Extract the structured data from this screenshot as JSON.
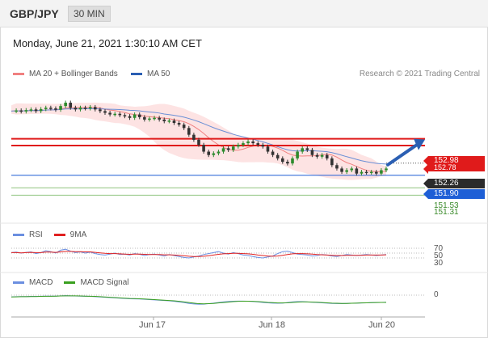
{
  "header": {
    "symbol": "GBP/JPY",
    "interval": "30 MIN"
  },
  "datetime": "Monday, June 21, 2021 1:30:10 AM CET",
  "legend": {
    "bollinger": "MA 20 + Bollinger Bands",
    "ma50": "MA 50"
  },
  "credit": "Research © 2021 Trading Central",
  "colors": {
    "bull": "#2d8a2d",
    "bear": "#333333",
    "ma20": "#f08080",
    "ma50": "#6a8fd6",
    "band": "#fde0e0",
    "resistance": "#e01b1b",
    "support": "#1e5fd6",
    "support2": "#3a8a2a",
    "arrow": "#2b5fb3",
    "rsi": "#6b8fe0",
    "rsi_ma": "#e02020",
    "macd": "#6b8fe0",
    "macd_signal": "#3aa020"
  },
  "levels": {
    "res1": "152.98",
    "res2": "152.78",
    "last": "152.26",
    "sup1": "151.90",
    "sup2": "151.53",
    "sup3": "151.31"
  },
  "rsi": {
    "label": "RSI",
    "ma_label": "9MA",
    "levels": [
      "70",
      "50",
      "30"
    ]
  },
  "macd": {
    "label": "MACD",
    "signal_label": "MACD Signal",
    "zero": "0"
  },
  "xaxis": [
    "Jun 17",
    "Jun 18",
    "Jun 20"
  ],
  "chart_data": {
    "type": "candlestick",
    "ylim": [
      151.2,
      154.6
    ],
    "price_path": [
      153.8,
      153.82,
      153.79,
      153.83,
      153.85,
      153.8,
      153.86,
      153.9,
      153.88,
      153.84,
      153.95,
      154.05,
      153.9,
      153.85,
      153.9,
      153.88,
      153.92,
      153.85,
      153.8,
      153.75,
      153.7,
      153.72,
      153.68,
      153.65,
      153.6,
      153.7,
      153.62,
      153.55,
      153.58,
      153.6,
      153.55,
      153.5,
      153.52,
      153.45,
      153.4,
      153.3,
      153.1,
      152.95,
      152.8,
      152.6,
      152.5,
      152.55,
      152.6,
      152.7,
      152.65,
      152.75,
      152.8,
      152.85,
      152.9,
      152.85,
      152.8,
      152.75,
      152.6,
      152.5,
      152.4,
      152.3,
      152.25,
      152.4,
      152.6,
      152.7,
      152.65,
      152.5,
      152.45,
      152.5,
      152.4,
      152.2,
      152.1,
      152.0,
      152.05,
      152.1,
      151.95,
      152.0,
      151.98,
      152.0,
      151.95,
      152.05,
      152.1
    ],
    "resistance_levels": [
      152.98,
      152.78
    ],
    "support_levels": [
      151.9,
      151.53,
      151.31
    ],
    "last_price": 152.26,
    "target": 152.98,
    "rsi": [
      52,
      54,
      50,
      53,
      55,
      48,
      52,
      60,
      56,
      50,
      62,
      66,
      58,
      52,
      55,
      50,
      54,
      48,
      44,
      42,
      46,
      50,
      44,
      46,
      42,
      48,
      45,
      40,
      44,
      46,
      42,
      38,
      44,
      40,
      36,
      32,
      30,
      34,
      38,
      44,
      48,
      52,
      56,
      50,
      46,
      52,
      48,
      42,
      40,
      36,
      32,
      30,
      34,
      38,
      48,
      56,
      58,
      52,
      46,
      44,
      42,
      38,
      40,
      44,
      42,
      38,
      36,
      40,
      44,
      42,
      40,
      42,
      44,
      42,
      40,
      42,
      44
    ],
    "rsi_ma": [
      52,
      52,
      51,
      52,
      53,
      52,
      52,
      54,
      54,
      53,
      55,
      57,
      57,
      56,
      56,
      55,
      55,
      53,
      51,
      49,
      48,
      48,
      47,
      46,
      45,
      46,
      46,
      45,
      44,
      44,
      44,
      43,
      43,
      42,
      41,
      39,
      37,
      36,
      36,
      37,
      39,
      42,
      45,
      47,
      48,
      49,
      49,
      48,
      47,
      45,
      42,
      40,
      38,
      37,
      38,
      41,
      44,
      47,
      48,
      48,
      47,
      46,
      44,
      43,
      42,
      41,
      40,
      40,
      41,
      41,
      41,
      41,
      42,
      42,
      42,
      42,
      43
    ],
    "macd": [
      0.05,
      0.06,
      0.07,
      0.07,
      0.08,
      0.08,
      0.09,
      0.1,
      0.1,
      0.1,
      0.12,
      0.13,
      0.12,
      0.11,
      0.1,
      0.09,
      0.08,
      0.06,
      0.04,
      0.02,
      0.0,
      -0.02,
      -0.04,
      -0.06,
      -0.08,
      -0.09,
      -0.1,
      -0.12,
      -0.14,
      -0.16,
      -0.18,
      -0.2,
      -0.22,
      -0.26,
      -0.3,
      -0.34,
      -0.4,
      -0.44,
      -0.46,
      -0.45,
      -0.42,
      -0.38,
      -0.34,
      -0.3,
      -0.27,
      -0.25,
      -0.24,
      -0.24,
      -0.25,
      -0.27,
      -0.3,
      -0.33,
      -0.36,
      -0.38,
      -0.39,
      -0.38,
      -0.34,
      -0.3,
      -0.28,
      -0.28,
      -0.3,
      -0.32,
      -0.34,
      -0.36,
      -0.38,
      -0.4,
      -0.41,
      -0.41,
      -0.4,
      -0.39,
      -0.38,
      -0.37,
      -0.36,
      -0.35,
      -0.34,
      -0.33,
      -0.32
    ],
    "macd_signal": [
      0.04,
      0.05,
      0.06,
      0.06,
      0.07,
      0.07,
      0.08,
      0.09,
      0.09,
      0.1,
      0.11,
      0.12,
      0.12,
      0.12,
      0.11,
      0.1,
      0.09,
      0.08,
      0.06,
      0.04,
      0.02,
      0.0,
      -0.02,
      -0.04,
      -0.06,
      -0.07,
      -0.08,
      -0.1,
      -0.12,
      -0.14,
      -0.16,
      -0.18,
      -0.2,
      -0.22,
      -0.26,
      -0.3,
      -0.34,
      -0.38,
      -0.42,
      -0.43,
      -0.42,
      -0.4,
      -0.37,
      -0.34,
      -0.31,
      -0.28,
      -0.26,
      -0.25,
      -0.25,
      -0.26,
      -0.28,
      -0.3,
      -0.33,
      -0.35,
      -0.37,
      -0.37,
      -0.36,
      -0.33,
      -0.31,
      -0.3,
      -0.3,
      -0.31,
      -0.32,
      -0.34,
      -0.36,
      -0.38,
      -0.39,
      -0.4,
      -0.4,
      -0.39,
      -0.38,
      -0.37,
      -0.36,
      -0.35,
      -0.34,
      -0.33,
      -0.33
    ]
  }
}
